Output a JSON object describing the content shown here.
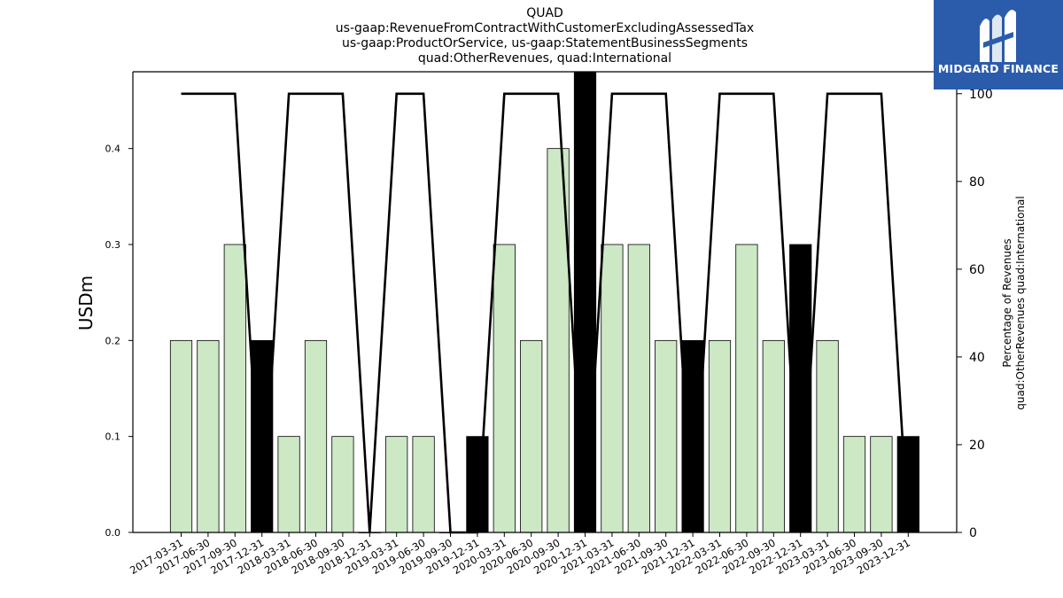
{
  "title_lines": [
    "QUAD",
    "us-gaap:RevenueFromContractWithCustomerExcludingAssessedTax",
    "us-gaap:ProductOrService, us-gaap:StatementBusinessSegments",
    "quad:OtherRevenues, quad:International"
  ],
  "logo": {
    "text": "MIDGARD FINANCE",
    "icon": "midgard-logo-icon",
    "background": "#2b5cab"
  },
  "colors": {
    "bar_normal": "#cce8c5",
    "bar_highlight": "#000000",
    "line": "#000000"
  },
  "chart_data": {
    "type": "bar",
    "categories": [
      "2017-03-31",
      "2017-06-30",
      "2017-09-30",
      "2017-12-31",
      "2018-03-31",
      "2018-06-30",
      "2018-09-30",
      "2018-12-31",
      "2019-03-31",
      "2019-06-30",
      "2019-09-30",
      "2019-12-31",
      "2020-03-31",
      "2020-06-30",
      "2020-09-30",
      "2020-12-31",
      "2021-03-31",
      "2021-06-30",
      "2021-09-30",
      "2021-12-31",
      "2022-03-31",
      "2022-06-30",
      "2022-09-30",
      "2022-12-31",
      "2023-03-31",
      "2023-06-30",
      "2023-09-30",
      "2023-12-31"
    ],
    "values": [
      0.2,
      0.2,
      0.3,
      0.2,
      0.1,
      0.2,
      0.1,
      0.0,
      0.1,
      0.1,
      0.0,
      0.1,
      0.3,
      0.2,
      0.4,
      0.5,
      0.3,
      0.3,
      0.2,
      0.2,
      0.2,
      0.3,
      0.2,
      0.3,
      0.2,
      0.1,
      0.1,
      0.1
    ],
    "highlight": [
      false,
      false,
      false,
      true,
      false,
      false,
      false,
      false,
      false,
      false,
      false,
      true,
      false,
      false,
      false,
      true,
      false,
      false,
      false,
      true,
      false,
      false,
      false,
      true,
      false,
      false,
      false,
      true
    ],
    "percent_line": [
      100,
      100,
      100,
      0,
      100,
      100,
      100,
      0,
      100,
      100,
      0,
      0,
      100,
      100,
      100,
      0,
      100,
      100,
      100,
      0,
      100,
      100,
      100,
      0,
      100,
      100,
      100,
      0
    ],
    "ylabel": "USDm",
    "y2label": [
      "Percentage of Revenues",
      "quad:OtherRevenues quad:International"
    ],
    "ylim": [
      0,
      0.48
    ],
    "y2lim": [
      0,
      105
    ],
    "yticks": [
      "0.0",
      "0.1",
      "0.2",
      "0.3",
      "0.4"
    ],
    "y2ticks": [
      "0",
      "20",
      "40",
      "60",
      "80",
      "100"
    ],
    "grid": false,
    "legend": "none"
  }
}
